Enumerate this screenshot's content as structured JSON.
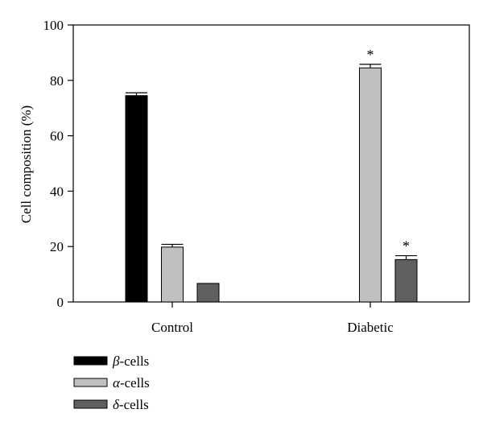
{
  "chart_data": {
    "type": "bar",
    "categories": [
      "Control",
      "Diabetic"
    ],
    "series": [
      {
        "name": "β-cells",
        "symbol": "β",
        "suffix": "-cells",
        "color": "#000000",
        "values": [
          74.5,
          0
        ],
        "errors": [
          1.0,
          0
        ]
      },
      {
        "name": "α-cells",
        "symbol": "α",
        "suffix": "-cells",
        "color": "#c0c0c0",
        "values": [
          19.8,
          84.5
        ],
        "errors": [
          1.0,
          1.3
        ]
      },
      {
        "name": "δ-cells",
        "symbol": "δ",
        "suffix": "-cells",
        "color": "#606060",
        "values": [
          6.7,
          15.3
        ],
        "errors": [
          0,
          1.4
        ]
      }
    ],
    "significance": [
      {
        "category": "Diabetic",
        "series": "α-cells",
        "mark": "*"
      },
      {
        "category": "Diabetic",
        "series": "δ-cells",
        "mark": "*"
      }
    ],
    "ylabel": "Cell composition (%)",
    "xlabel": "",
    "ylim": [
      0,
      100
    ],
    "yticks": [
      "0",
      "20",
      "40",
      "60",
      "80",
      "100"
    ],
    "grid": false,
    "legend_position": "bottom-left"
  }
}
